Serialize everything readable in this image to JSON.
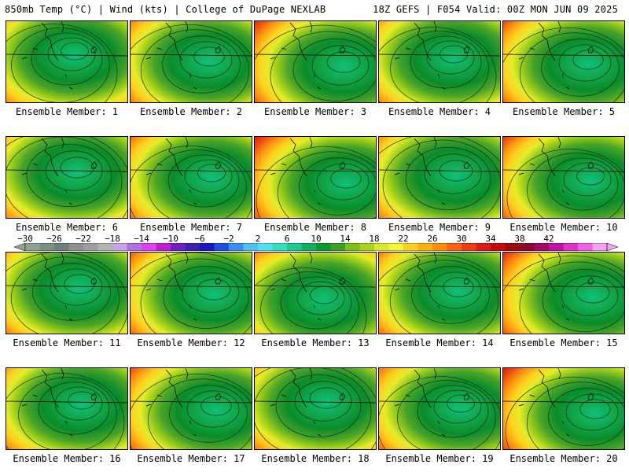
{
  "header": {
    "left_title": "850mb Temp (°C) | Wind (kts) | College of DuPage NEXLAB",
    "right_title": "18Z GEFS | F054 Valid: 00Z MON JUN 09 2025"
  },
  "members": [
    {
      "label": "Ensemble Member: 1"
    },
    {
      "label": "Ensemble Member: 2"
    },
    {
      "label": "Ensemble Member: 3"
    },
    {
      "label": "Ensemble Member: 4"
    },
    {
      "label": "Ensemble Member: 5"
    },
    {
      "label": "Ensemble Member: 6"
    },
    {
      "label": "Ensemble Member: 7"
    },
    {
      "label": "Ensemble Member: 8"
    },
    {
      "label": "Ensemble Member: 9"
    },
    {
      "label": "Ensemble Member: 10"
    },
    {
      "label": "Ensemble Member: 11"
    },
    {
      "label": "Ensemble Member: 12"
    },
    {
      "label": "Ensemble Member: 13"
    },
    {
      "label": "Ensemble Member: 14"
    },
    {
      "label": "Ensemble Member: 15"
    },
    {
      "label": "Ensemble Member: 16"
    },
    {
      "label": "Ensemble Member: 17"
    },
    {
      "label": "Ensemble Member: 18"
    },
    {
      "label": "Ensemble Member: 19"
    },
    {
      "label": "Ensemble Member: 20"
    }
  ],
  "colorbar": {
    "labels": [
      "-30",
      "-26",
      "-22",
      "-18",
      "-14",
      "-10",
      "-6",
      "-2",
      "2",
      "6",
      "10",
      "14",
      "18",
      "22",
      "26",
      "30",
      "34",
      "38",
      "42"
    ],
    "colors": [
      "#8fa38f",
      "#7f8f7f",
      "#6f7f7f",
      "#8f8f8f",
      "#9f9f9f",
      "#b3b3b3",
      "#c6a6e6",
      "#b070e0",
      "#e040f0",
      "#c020d0",
      "#7020c0",
      "#4020b0",
      "#1818c8",
      "#1f4fe8",
      "#3a8ff0",
      "#50c0f0",
      "#50e0f0",
      "#30e0c0",
      "#20c890",
      "#10b060",
      "#0a9a30",
      "#3ca028",
      "#7cc018",
      "#a6d41a",
      "#d8e82a",
      "#f4f430",
      "#ffd020",
      "#ffb010",
      "#ff8c10",
      "#ff6010",
      "#f03a10",
      "#e01818",
      "#c80a0a",
      "#a00808",
      "#8c0a28",
      "#a00a60",
      "#c010a0",
      "#e030c8",
      "#f060e0",
      "#f8a0f0"
    ]
  }
}
